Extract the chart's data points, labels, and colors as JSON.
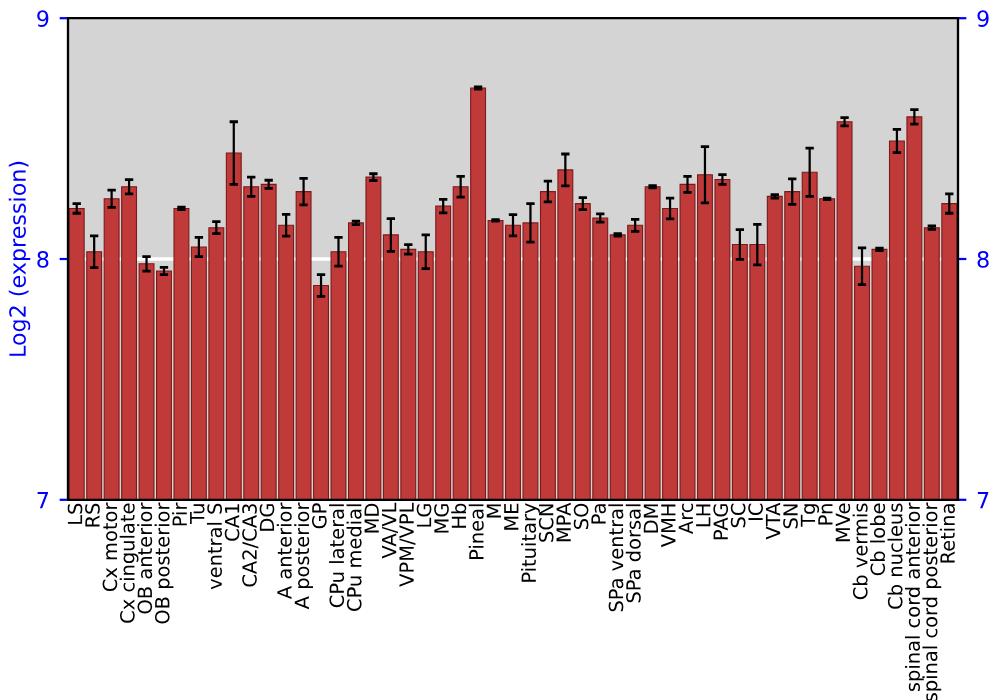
{
  "chart_data": {
    "type": "bar",
    "ylabel": "Log2 (expression)",
    "categories": [
      "LS",
      "RS",
      "Cx motor",
      "Cx cingulate",
      "OB anterior",
      "OB posterior",
      "Pir",
      "Tu",
      "ventral S",
      "CA1",
      "CA2/CA3",
      "DG",
      "A anterior",
      "A posterior",
      "GP",
      "CPu lateral",
      "CPu medial",
      "MD",
      "VA/VL",
      "VPM/VPL",
      "LG",
      "MG",
      "Hb",
      "Pineal",
      "M",
      "ME",
      "Pituitary",
      "SCN",
      "MPA",
      "SO",
      "Pa",
      "SPa ventral",
      "SPa dorsal",
      "DM",
      "VMH",
      "Arc",
      "LH",
      "PAG",
      "SC",
      "IC",
      "VTA",
      "SN",
      "Tg",
      "Pn",
      "MVe",
      "Cb vermis",
      "Cb lobe",
      "Cb nucleus",
      "spinal cord anterior",
      "spinal cord posterior",
      "Retina"
    ],
    "values": [
      8.21,
      8.03,
      8.25,
      8.3,
      7.98,
      7.95,
      8.21,
      8.05,
      8.13,
      8.44,
      8.3,
      8.31,
      8.14,
      8.28,
      7.89,
      8.03,
      8.15,
      8.34,
      8.1,
      8.04,
      8.03,
      8.22,
      8.3,
      8.71,
      8.16,
      8.14,
      8.15,
      8.28,
      8.37,
      8.23,
      8.17,
      8.1,
      8.14,
      8.3,
      8.21,
      8.31,
      8.35,
      8.33,
      8.06,
      8.06,
      8.26,
      8.28,
      8.36,
      8.25,
      8.57,
      7.97,
      8.04,
      8.49,
      8.59,
      8.13,
      8.23
    ],
    "errors": [
      0.02,
      0.066,
      0.036,
      0.03,
      0.03,
      0.015,
      0.005,
      0.04,
      0.025,
      0.13,
      0.04,
      0.017,
      0.045,
      0.055,
      0.045,
      0.06,
      0.007,
      0.014,
      0.068,
      0.02,
      0.07,
      0.028,
      0.043,
      0.005,
      0.003,
      0.044,
      0.08,
      0.043,
      0.066,
      0.025,
      0.017,
      0.005,
      0.025,
      0.005,
      0.043,
      0.033,
      0.117,
      0.02,
      0.062,
      0.084,
      0.007,
      0.053,
      0.1,
      0.003,
      0.017,
      0.076,
      0.005,
      0.048,
      0.03,
      0.007,
      0.04
    ],
    "color": "#c03a3a",
    "ylim": [
      7,
      9
    ],
    "yticks": [
      7,
      8,
      9
    ],
    "y2lim": [
      7,
      9
    ],
    "y2ticks": [
      7,
      8,
      9
    ],
    "grid": "y"
  }
}
